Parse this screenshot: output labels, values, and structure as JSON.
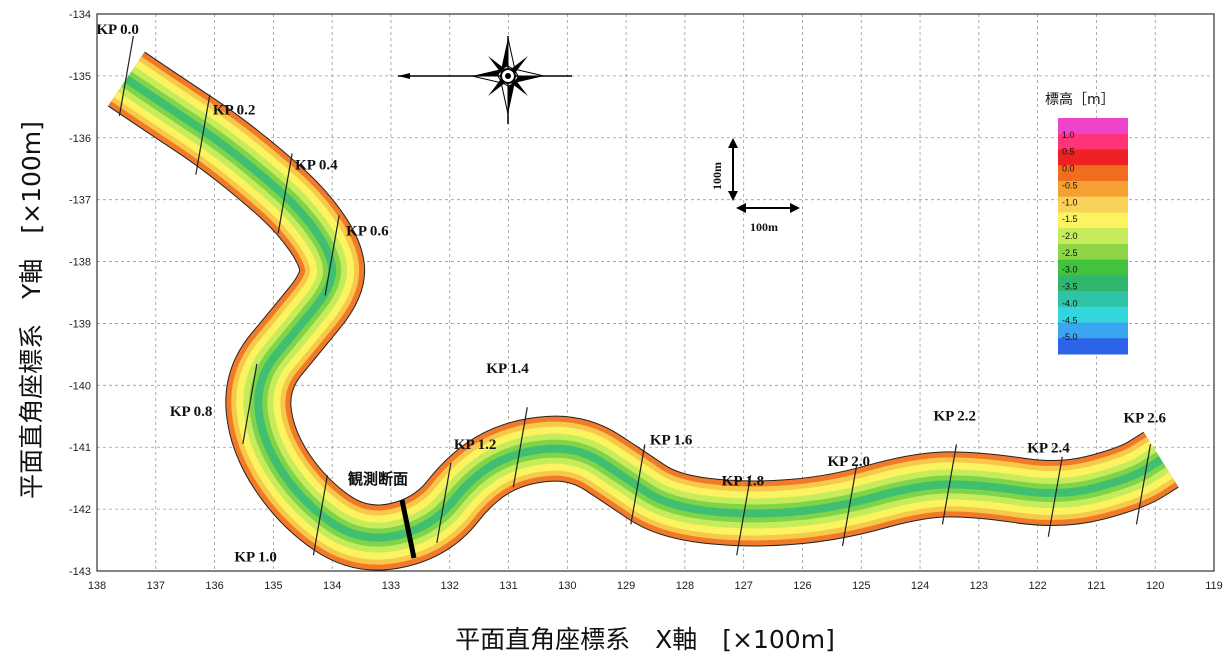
{
  "chart_data": {
    "type": "map",
    "x_axis": {
      "title": "平面直角座標系　X軸　[×100m]",
      "range": [
        138,
        119
      ],
      "ticks": [
        "138",
        "137",
        "136",
        "135",
        "134",
        "133",
        "132",
        "131",
        "130",
        "129",
        "128",
        "127",
        "126",
        "125",
        "124",
        "123",
        "122",
        "121",
        "120",
        "119"
      ]
    },
    "y_axis": {
      "title": "平面直角座標系　Y軸　[×100m]",
      "range": [
        -134,
        -143
      ],
      "ticks": [
        "-134",
        "-135",
        "-136",
        "-137",
        "-138",
        "-139",
        "-140",
        "-141",
        "-142",
        "-143"
      ]
    },
    "grid": true,
    "river_centerline": [
      {
        "x": 137.5,
        "y": -135.05
      },
      {
        "x": 136.8,
        "y": -135.5
      },
      {
        "x": 136.0,
        "y": -136.0
      },
      {
        "x": 135.2,
        "y": -136.6
      },
      {
        "x": 134.5,
        "y": -137.2
      },
      {
        "x": 134.0,
        "y": -137.9
      },
      {
        "x": 134.0,
        "y": -138.4
      },
      {
        "x": 134.6,
        "y": -139.1
      },
      {
        "x": 135.3,
        "y": -139.9
      },
      {
        "x": 135.2,
        "y": -140.9
      },
      {
        "x": 134.5,
        "y": -141.9
      },
      {
        "x": 133.5,
        "y": -142.55
      },
      {
        "x": 132.3,
        "y": -142.3
      },
      {
        "x": 131.6,
        "y": -141.45
      },
      {
        "x": 130.8,
        "y": -141.05
      },
      {
        "x": 129.8,
        "y": -141.0
      },
      {
        "x": 129.0,
        "y": -141.5
      },
      {
        "x": 128.3,
        "y": -141.95
      },
      {
        "x": 127.0,
        "y": -142.1
      },
      {
        "x": 125.5,
        "y": -142.0
      },
      {
        "x": 124.0,
        "y": -141.6
      },
      {
        "x": 123.0,
        "y": -141.6
      },
      {
        "x": 121.6,
        "y": -141.8
      },
      {
        "x": 120.4,
        "y": -141.5
      },
      {
        "x": 119.9,
        "y": -141.2
      }
    ],
    "kilometer_posts": [
      {
        "label": "KP 0.0",
        "x": 137.5,
        "y": -135.0
      },
      {
        "label": "KP 0.2",
        "x": 136.2,
        "y": -135.95
      },
      {
        "label": "KP 0.4",
        "x": 134.8,
        "y": -136.9
      },
      {
        "label": "KP 0.6",
        "x": 134.0,
        "y": -137.9
      },
      {
        "label": "KP 0.8",
        "x": 135.4,
        "y": -140.3
      },
      {
        "label": "KP 1.0",
        "x": 134.2,
        "y": -142.1
      },
      {
        "label": "KP 1.2",
        "x": 132.1,
        "y": -141.9
      },
      {
        "label": "KP 1.4",
        "x": 130.8,
        "y": -141.0
      },
      {
        "label": "KP 1.6",
        "x": 128.8,
        "y": -141.6
      },
      {
        "label": "KP 1.8",
        "x": 127.0,
        "y": -142.1
      },
      {
        "label": "KP 2.0",
        "x": 125.2,
        "y": -141.95
      },
      {
        "label": "KP 2.2",
        "x": 123.5,
        "y": -141.6
      },
      {
        "label": "KP 2.4",
        "x": 121.7,
        "y": -141.8
      },
      {
        "label": "KP 2.6",
        "x": 120.2,
        "y": -141.6
      }
    ],
    "observation_section_label": "観測断面",
    "scale_bar_label_vertical": "100m",
    "scale_bar_label_horizontal": "100m",
    "legend": {
      "title": "標高［m］",
      "levels": [
        "1.0",
        "0.5",
        "0.0",
        "-0.5",
        "-1.0",
        "-1.5",
        "-2.0",
        "-2.5",
        "-3.0",
        "-3.5",
        "-4.0",
        "-4.5",
        "-5.0"
      ],
      "colors": [
        "#ee44cc",
        "#ff3377",
        "#ee2222",
        "#f06d1e",
        "#f5a033",
        "#f8d05a",
        "#fbf35f",
        "#c6ec5c",
        "#8ed648",
        "#43c23d",
        "#2fb66c",
        "#2fc3a8",
        "#33d6dd",
        "#3aa6ef",
        "#2d63e8"
      ]
    }
  }
}
